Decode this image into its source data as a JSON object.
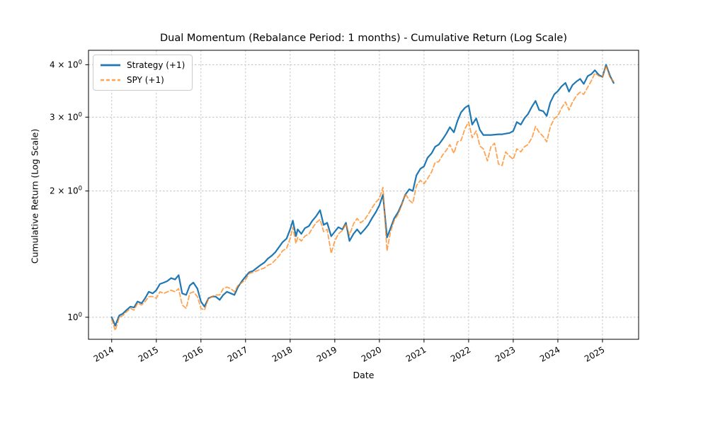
{
  "figure": {
    "background": "#ffffff",
    "spine_color": "#000000",
    "grid_color": "#c0c0c0"
  },
  "chart_data": {
    "type": "line",
    "title": "Dual Momentum (Rebalance Period: 1 months) - Cumulative Return (Log Scale)",
    "xlabel": "Date",
    "ylabel": "Cumulative Return (Log Scale)",
    "yscale": "log",
    "grid": true,
    "legend_position": "upper left",
    "xlim": [
      2013.48,
      2025.81
    ],
    "ylim": [
      0.886,
      4.33
    ],
    "x_ticks": [
      {
        "value": 2014,
        "label": "2014"
      },
      {
        "value": 2015,
        "label": "2015"
      },
      {
        "value": 2016,
        "label": "2016"
      },
      {
        "value": 2017,
        "label": "2017"
      },
      {
        "value": 2018,
        "label": "2018"
      },
      {
        "value": 2019,
        "label": "2019"
      },
      {
        "value": 2020,
        "label": "2020"
      },
      {
        "value": 2021,
        "label": "2021"
      },
      {
        "value": 2022,
        "label": "2022"
      },
      {
        "value": 2023,
        "label": "2023"
      },
      {
        "value": 2024,
        "label": "2024"
      },
      {
        "value": 2025,
        "label": "2025"
      }
    ],
    "y_ticks": [
      {
        "value": 1,
        "mantissa": "10",
        "exponent": "0"
      },
      {
        "value": 2,
        "mantissa": "2 × 10",
        "exponent": "0"
      },
      {
        "value": 3,
        "mantissa": "3 × 10",
        "exponent": "0"
      },
      {
        "value": 4,
        "mantissa": "4 × 10",
        "exponent": "0"
      }
    ],
    "series": [
      {
        "name": "Strategy (+1)",
        "color": "#1f77b4",
        "style": "solid",
        "width": 2.2,
        "opacity": 1,
        "points": [
          [
            2014.0,
            1.0
          ],
          [
            2014.08,
            0.955
          ],
          [
            2014.17,
            1.01
          ],
          [
            2014.25,
            1.02
          ],
          [
            2014.33,
            1.04
          ],
          [
            2014.42,
            1.06
          ],
          [
            2014.5,
            1.055
          ],
          [
            2014.58,
            1.09
          ],
          [
            2014.67,
            1.08
          ],
          [
            2014.75,
            1.11
          ],
          [
            2014.83,
            1.15
          ],
          [
            2014.92,
            1.14
          ],
          [
            2015.0,
            1.16
          ],
          [
            2015.08,
            1.2
          ],
          [
            2015.17,
            1.21
          ],
          [
            2015.25,
            1.22
          ],
          [
            2015.33,
            1.24
          ],
          [
            2015.42,
            1.23
          ],
          [
            2015.5,
            1.26
          ],
          [
            2015.58,
            1.14
          ],
          [
            2015.67,
            1.13
          ],
          [
            2015.75,
            1.19
          ],
          [
            2015.83,
            1.21
          ],
          [
            2015.92,
            1.17
          ],
          [
            2016.0,
            1.09
          ],
          [
            2016.08,
            1.06
          ],
          [
            2016.17,
            1.11
          ],
          [
            2016.25,
            1.12
          ],
          [
            2016.33,
            1.12
          ],
          [
            2016.42,
            1.1
          ],
          [
            2016.5,
            1.13
          ],
          [
            2016.58,
            1.15
          ],
          [
            2016.67,
            1.14
          ],
          [
            2016.75,
            1.13
          ],
          [
            2016.83,
            1.18
          ],
          [
            2016.92,
            1.22
          ],
          [
            2017.0,
            1.25
          ],
          [
            2017.08,
            1.28
          ],
          [
            2017.17,
            1.29
          ],
          [
            2017.25,
            1.31
          ],
          [
            2017.33,
            1.33
          ],
          [
            2017.42,
            1.35
          ],
          [
            2017.5,
            1.38
          ],
          [
            2017.58,
            1.4
          ],
          [
            2017.67,
            1.43
          ],
          [
            2017.75,
            1.47
          ],
          [
            2017.83,
            1.51
          ],
          [
            2017.92,
            1.54
          ],
          [
            2018.0,
            1.62
          ],
          [
            2018.06,
            1.7
          ],
          [
            2018.13,
            1.56
          ],
          [
            2018.17,
            1.62
          ],
          [
            2018.25,
            1.58
          ],
          [
            2018.33,
            1.63
          ],
          [
            2018.42,
            1.65
          ],
          [
            2018.5,
            1.7
          ],
          [
            2018.58,
            1.74
          ],
          [
            2018.67,
            1.8
          ],
          [
            2018.75,
            1.66
          ],
          [
            2018.83,
            1.68
          ],
          [
            2018.92,
            1.56
          ],
          [
            2019.0,
            1.6
          ],
          [
            2019.08,
            1.64
          ],
          [
            2019.17,
            1.62
          ],
          [
            2019.25,
            1.68
          ],
          [
            2019.33,
            1.52
          ],
          [
            2019.42,
            1.58
          ],
          [
            2019.5,
            1.62
          ],
          [
            2019.58,
            1.58
          ],
          [
            2019.67,
            1.62
          ],
          [
            2019.75,
            1.66
          ],
          [
            2019.83,
            1.72
          ],
          [
            2019.92,
            1.78
          ],
          [
            2020.0,
            1.85
          ],
          [
            2020.08,
            1.96
          ],
          [
            2020.17,
            1.55
          ],
          [
            2020.25,
            1.63
          ],
          [
            2020.33,
            1.72
          ],
          [
            2020.42,
            1.78
          ],
          [
            2020.5,
            1.86
          ],
          [
            2020.58,
            1.96
          ],
          [
            2020.67,
            2.02
          ],
          [
            2020.75,
            2.0
          ],
          [
            2020.83,
            2.18
          ],
          [
            2020.92,
            2.26
          ],
          [
            2021.0,
            2.29
          ],
          [
            2021.08,
            2.4
          ],
          [
            2021.17,
            2.46
          ],
          [
            2021.25,
            2.55
          ],
          [
            2021.33,
            2.58
          ],
          [
            2021.42,
            2.66
          ],
          [
            2021.5,
            2.74
          ],
          [
            2021.58,
            2.84
          ],
          [
            2021.67,
            2.76
          ],
          [
            2021.75,
            2.94
          ],
          [
            2021.83,
            3.08
          ],
          [
            2021.92,
            3.16
          ],
          [
            2022.0,
            3.2
          ],
          [
            2022.08,
            2.88
          ],
          [
            2022.17,
            2.98
          ],
          [
            2022.25,
            2.8
          ],
          [
            2022.33,
            2.72
          ],
          [
            2022.42,
            2.72
          ],
          [
            2022.5,
            2.72
          ],
          [
            2022.58,
            2.725
          ],
          [
            2022.67,
            2.73
          ],
          [
            2022.75,
            2.73
          ],
          [
            2022.83,
            2.74
          ],
          [
            2022.92,
            2.75
          ],
          [
            2023.0,
            2.78
          ],
          [
            2023.08,
            2.92
          ],
          [
            2023.17,
            2.88
          ],
          [
            2023.25,
            2.98
          ],
          [
            2023.33,
            3.05
          ],
          [
            2023.42,
            3.18
          ],
          [
            2023.5,
            3.28
          ],
          [
            2023.58,
            3.12
          ],
          [
            2023.67,
            3.1
          ],
          [
            2023.75,
            3.02
          ],
          [
            2023.83,
            3.25
          ],
          [
            2023.92,
            3.4
          ],
          [
            2024.0,
            3.46
          ],
          [
            2024.08,
            3.55
          ],
          [
            2024.17,
            3.62
          ],
          [
            2024.25,
            3.45
          ],
          [
            2024.33,
            3.58
          ],
          [
            2024.42,
            3.65
          ],
          [
            2024.5,
            3.7
          ],
          [
            2024.58,
            3.6
          ],
          [
            2024.67,
            3.76
          ],
          [
            2024.75,
            3.8
          ],
          [
            2024.83,
            3.88
          ],
          [
            2024.92,
            3.78
          ],
          [
            2025.0,
            3.74
          ],
          [
            2025.08,
            4.0
          ],
          [
            2025.17,
            3.76
          ],
          [
            2025.25,
            3.62
          ]
        ]
      },
      {
        "name": "SPY (+1)",
        "color": "#ff7f0e",
        "style": "dashed",
        "width": 1.8,
        "opacity": 0.72,
        "points": [
          [
            2014.0,
            0.99
          ],
          [
            2014.08,
            0.93
          ],
          [
            2014.17,
            1.0
          ],
          [
            2014.25,
            1.01
          ],
          [
            2014.33,
            1.03
          ],
          [
            2014.42,
            1.05
          ],
          [
            2014.5,
            1.04
          ],
          [
            2014.58,
            1.08
          ],
          [
            2014.67,
            1.07
          ],
          [
            2014.75,
            1.09
          ],
          [
            2014.83,
            1.12
          ],
          [
            2014.92,
            1.12
          ],
          [
            2015.0,
            1.11
          ],
          [
            2015.08,
            1.15
          ],
          [
            2015.17,
            1.14
          ],
          [
            2015.25,
            1.15
          ],
          [
            2015.33,
            1.16
          ],
          [
            2015.42,
            1.15
          ],
          [
            2015.5,
            1.17
          ],
          [
            2015.58,
            1.07
          ],
          [
            2015.67,
            1.05
          ],
          [
            2015.75,
            1.14
          ],
          [
            2015.83,
            1.15
          ],
          [
            2015.92,
            1.12
          ],
          [
            2016.0,
            1.05
          ],
          [
            2016.08,
            1.04
          ],
          [
            2016.17,
            1.11
          ],
          [
            2016.25,
            1.12
          ],
          [
            2016.33,
            1.13
          ],
          [
            2016.42,
            1.13
          ],
          [
            2016.5,
            1.17
          ],
          [
            2016.58,
            1.18
          ],
          [
            2016.67,
            1.17
          ],
          [
            2016.75,
            1.15
          ],
          [
            2016.83,
            1.19
          ],
          [
            2016.92,
            1.21
          ],
          [
            2017.0,
            1.23
          ],
          [
            2017.08,
            1.27
          ],
          [
            2017.17,
            1.28
          ],
          [
            2017.25,
            1.29
          ],
          [
            2017.33,
            1.3
          ],
          [
            2017.42,
            1.31
          ],
          [
            2017.5,
            1.33
          ],
          [
            2017.58,
            1.34
          ],
          [
            2017.67,
            1.37
          ],
          [
            2017.75,
            1.4
          ],
          [
            2017.83,
            1.44
          ],
          [
            2017.92,
            1.46
          ],
          [
            2018.0,
            1.54
          ],
          [
            2018.06,
            1.64
          ],
          [
            2018.13,
            1.5
          ],
          [
            2018.17,
            1.55
          ],
          [
            2018.25,
            1.52
          ],
          [
            2018.33,
            1.56
          ],
          [
            2018.42,
            1.58
          ],
          [
            2018.5,
            1.63
          ],
          [
            2018.58,
            1.68
          ],
          [
            2018.67,
            1.71
          ],
          [
            2018.75,
            1.6
          ],
          [
            2018.83,
            1.62
          ],
          [
            2018.92,
            1.42
          ],
          [
            2019.0,
            1.52
          ],
          [
            2019.08,
            1.58
          ],
          [
            2019.17,
            1.61
          ],
          [
            2019.25,
            1.67
          ],
          [
            2019.33,
            1.57
          ],
          [
            2019.42,
            1.67
          ],
          [
            2019.5,
            1.72
          ],
          [
            2019.58,
            1.68
          ],
          [
            2019.67,
            1.71
          ],
          [
            2019.75,
            1.76
          ],
          [
            2019.83,
            1.82
          ],
          [
            2019.92,
            1.88
          ],
          [
            2020.0,
            1.92
          ],
          [
            2020.08,
            2.04
          ],
          [
            2020.17,
            1.44
          ],
          [
            2020.25,
            1.6
          ],
          [
            2020.33,
            1.7
          ],
          [
            2020.42,
            1.76
          ],
          [
            2020.5,
            1.85
          ],
          [
            2020.58,
            1.97
          ],
          [
            2020.67,
            1.9
          ],
          [
            2020.75,
            1.87
          ],
          [
            2020.83,
            2.06
          ],
          [
            2020.92,
            2.12
          ],
          [
            2021.0,
            2.08
          ],
          [
            2021.08,
            2.14
          ],
          [
            2021.17,
            2.22
          ],
          [
            2021.25,
            2.34
          ],
          [
            2021.33,
            2.35
          ],
          [
            2021.42,
            2.44
          ],
          [
            2021.5,
            2.5
          ],
          [
            2021.58,
            2.58
          ],
          [
            2021.67,
            2.46
          ],
          [
            2021.75,
            2.62
          ],
          [
            2021.83,
            2.64
          ],
          [
            2021.92,
            2.82
          ],
          [
            2022.0,
            2.92
          ],
          [
            2022.08,
            2.68
          ],
          [
            2022.17,
            2.78
          ],
          [
            2022.25,
            2.56
          ],
          [
            2022.33,
            2.52
          ],
          [
            2022.42,
            2.36
          ],
          [
            2022.5,
            2.55
          ],
          [
            2022.58,
            2.6
          ],
          [
            2022.67,
            2.32
          ],
          [
            2022.75,
            2.3
          ],
          [
            2022.83,
            2.48
          ],
          [
            2022.92,
            2.42
          ],
          [
            2023.0,
            2.38
          ],
          [
            2023.08,
            2.52
          ],
          [
            2023.17,
            2.48
          ],
          [
            2023.25,
            2.55
          ],
          [
            2023.33,
            2.58
          ],
          [
            2023.42,
            2.68
          ],
          [
            2023.5,
            2.85
          ],
          [
            2023.58,
            2.76
          ],
          [
            2023.67,
            2.7
          ],
          [
            2023.75,
            2.62
          ],
          [
            2023.83,
            2.84
          ],
          [
            2023.92,
            2.98
          ],
          [
            2024.0,
            3.02
          ],
          [
            2024.08,
            3.15
          ],
          [
            2024.17,
            3.26
          ],
          [
            2024.25,
            3.12
          ],
          [
            2024.33,
            3.26
          ],
          [
            2024.42,
            3.38
          ],
          [
            2024.5,
            3.44
          ],
          [
            2024.58,
            3.4
          ],
          [
            2024.67,
            3.54
          ],
          [
            2024.75,
            3.66
          ],
          [
            2024.83,
            3.82
          ],
          [
            2024.92,
            3.76
          ],
          [
            2025.0,
            3.74
          ],
          [
            2025.08,
            3.98
          ],
          [
            2025.17,
            3.72
          ],
          [
            2025.25,
            3.65
          ]
        ]
      }
    ]
  }
}
